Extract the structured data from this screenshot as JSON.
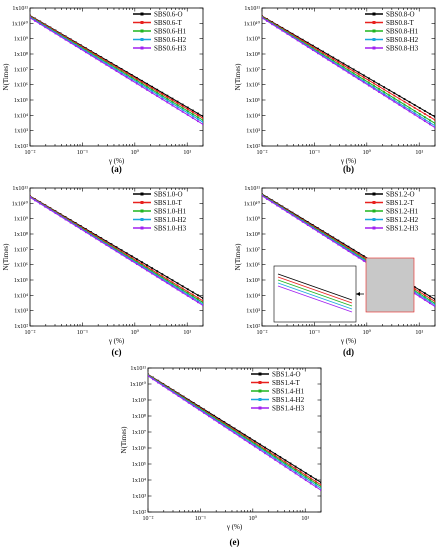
{
  "figure": {
    "colors": {
      "O": "#000000",
      "T": "#e8201e",
      "H1": "#1fb51f",
      "H2": "#1aa6de",
      "H3": "#a020f0"
    }
  },
  "chart_data": [
    {
      "panel": "a",
      "type": "line",
      "xscale": "log",
      "yscale": "log",
      "xlabel": "γ (%)",
      "ylabel": "N(Times)",
      "xlim": [
        0.01,
        20
      ],
      "ylim": [
        100.0,
        100000000000.0
      ],
      "x_ticks": [
        "10⁻²",
        "10⁻¹",
        "10⁰",
        "10¹"
      ],
      "y_ticks": [
        "1x10²",
        "1x10³",
        "1x10⁴",
        "1x10⁵",
        "1x10⁶",
        "1x10⁷",
        "1x10⁸",
        "1x10⁹",
        "1x10¹⁰",
        "1x10¹¹"
      ],
      "legend_position": "top-right",
      "series": [
        {
          "name": "SBS0.6-O",
          "key": "O",
          "x": [
            0.01,
            20
          ],
          "y": [
            32000000000.0,
            8500.0
          ]
        },
        {
          "name": "SBS0.6-T",
          "key": "T",
          "x": [
            0.01,
            20
          ],
          "y": [
            30000000000.0,
            6500.0
          ]
        },
        {
          "name": "SBS0.6-H1",
          "key": "H1",
          "x": [
            0.01,
            20
          ],
          "y": [
            27000000000.0,
            4800.0
          ]
        },
        {
          "name": "SBS0.6-H2",
          "key": "H2",
          "x": [
            0.01,
            20
          ],
          "y": [
            25000000000.0,
            3600.0
          ]
        },
        {
          "name": "SBS0.6-H3",
          "key": "H3",
          "x": [
            0.01,
            20
          ],
          "y": [
            23000000000.0,
            2600.0
          ]
        }
      ]
    },
    {
      "panel": "b",
      "type": "line",
      "xscale": "log",
      "yscale": "log",
      "xlabel": "γ (%)",
      "ylabel": "N(Times)",
      "xlim": [
        0.01,
        20
      ],
      "ylim": [
        100.0,
        100000000000.0
      ],
      "x_ticks": [
        "10⁻²",
        "10⁻¹",
        "10⁰",
        "10¹"
      ],
      "y_ticks": [
        "1x10²",
        "1x10³",
        "1x10⁴",
        "1x10⁵",
        "1x10⁶",
        "1x10⁷",
        "1x10⁸",
        "1x10⁹",
        "1x10¹⁰",
        "1x10¹¹"
      ],
      "legend_position": "top-right",
      "series": [
        {
          "name": "SBS0.8-O",
          "key": "O",
          "x": [
            0.01,
            20
          ],
          "y": [
            30000000000.0,
            8000.0
          ]
        },
        {
          "name": "SBS0.8-T",
          "key": "T",
          "x": [
            0.01,
            20
          ],
          "y": [
            28000000000.0,
            5000.0
          ]
        },
        {
          "name": "SBS0.8-H1",
          "key": "H1",
          "x": [
            0.01,
            20
          ],
          "y": [
            26000000000.0,
            3000.0
          ]
        },
        {
          "name": "SBS0.8-H2",
          "key": "H2",
          "x": [
            0.01,
            20
          ],
          "y": [
            24000000000.0,
            2100.0
          ]
        },
        {
          "name": "SBS0.8-H3",
          "key": "H3",
          "x": [
            0.01,
            20
          ],
          "y": [
            23000000000.0,
            1600.0
          ]
        }
      ]
    },
    {
      "panel": "c",
      "type": "line",
      "xscale": "log",
      "yscale": "log",
      "xlabel": "γ (%)",
      "ylabel": "N(Times)",
      "xlim": [
        0.01,
        20
      ],
      "ylim": [
        100.0,
        100000000000.0
      ],
      "x_ticks": [
        "10⁻²",
        "10⁻¹",
        "10⁰",
        "10¹"
      ],
      "y_ticks": [
        "1x10²",
        "1x10³",
        "1x10⁴",
        "1x10⁵",
        "1x10⁶",
        "1x10⁷",
        "1x10⁸",
        "1x10⁹",
        "1x10¹⁰",
        "1x10¹¹"
      ],
      "legend_position": "top-right",
      "series": [
        {
          "name": "SBS1.0-O",
          "key": "O",
          "x": [
            0.01,
            20
          ],
          "y": [
            30000000000.0,
            6500.0
          ]
        },
        {
          "name": "SBS1.0-T",
          "key": "T",
          "x": [
            0.01,
            20
          ],
          "y": [
            29000000000.0,
            4400.0
          ]
        },
        {
          "name": "SBS1.0-H1",
          "key": "H1",
          "x": [
            0.01,
            20
          ],
          "y": [
            27000000000.0,
            3400.0
          ]
        },
        {
          "name": "SBS1.0-H2",
          "key": "H2",
          "x": [
            0.01,
            20
          ],
          "y": [
            26000000000.0,
            2700.0
          ]
        },
        {
          "name": "SBS1.0-H3",
          "key": "H3",
          "x": [
            0.01,
            20
          ],
          "y": [
            25000000000.0,
            2200.0
          ]
        }
      ]
    },
    {
      "panel": "d",
      "type": "line",
      "xscale": "log",
      "yscale": "log",
      "xlabel": "γ (%)",
      "ylabel": "N(Times)",
      "xlim": [
        0.01,
        20
      ],
      "ylim": [
        100.0,
        100000000000.0
      ],
      "x_ticks": [
        "10⁻²",
        "10⁻¹",
        "10⁰",
        "10¹"
      ],
      "y_ticks": [
        "1x10²",
        "1x10³",
        "1x10⁴",
        "1x10⁵",
        "1x10⁶",
        "1x10⁷",
        "1x10⁸",
        "1x10⁹",
        "1x10¹⁰",
        "1x10¹¹"
      ],
      "legend_position": "top-right",
      "inset": "zoomed view of the lines near γ = 1%",
      "series": [
        {
          "name": "SBS1.2-O",
          "key": "O",
          "x": [
            0.01,
            20
          ],
          "y": [
            40000000000.0,
            5500.0
          ]
        },
        {
          "name": "SBS1.2-T",
          "key": "T",
          "x": [
            0.01,
            20
          ],
          "y": [
            37000000000.0,
            4000.0
          ]
        },
        {
          "name": "SBS1.2-H1",
          "key": "H1",
          "x": [
            0.01,
            20
          ],
          "y": [
            35000000000.0,
            3000.0
          ]
        },
        {
          "name": "SBS1.2-H2",
          "key": "H2",
          "x": [
            0.01,
            20
          ],
          "y": [
            33000000000.0,
            2400.0
          ]
        },
        {
          "name": "SBS1.2-H3",
          "key": "H3",
          "x": [
            0.01,
            20
          ],
          "y": [
            31000000000.0,
            1900.0
          ]
        }
      ]
    },
    {
      "panel": "e",
      "type": "line",
      "xscale": "log",
      "yscale": "log",
      "xlabel": "γ (%)",
      "ylabel": "N(Times)",
      "xlim": [
        0.01,
        20
      ],
      "ylim": [
        100.0,
        100000000000.0
      ],
      "x_ticks": [
        "10⁻²",
        "10⁻¹",
        "10⁰",
        "10¹"
      ],
      "y_ticks": [
        "1x10²",
        "1x10³",
        "1x10⁴",
        "1x10⁵",
        "1x10⁶",
        "1x10⁷",
        "1x10⁸",
        "1x10⁹",
        "1x10¹⁰",
        "1x10¹¹"
      ],
      "legend_position": "top-right",
      "series": [
        {
          "name": "SBS1.4-O",
          "key": "O",
          "x": [
            0.01,
            20
          ],
          "y": [
            40000000000.0,
            7000.0
          ]
        },
        {
          "name": "SBS1.4-T",
          "key": "T",
          "x": [
            0.01,
            20
          ],
          "y": [
            38000000000.0,
            5000.0
          ]
        },
        {
          "name": "SBS1.4-H1",
          "key": "H1",
          "x": [
            0.01,
            20
          ],
          "y": [
            36000000000.0,
            3900.0
          ]
        },
        {
          "name": "SBS1.4-H2",
          "key": "H2",
          "x": [
            0.01,
            20
          ],
          "y": [
            34000000000.0,
            3000.0
          ]
        },
        {
          "name": "SBS1.4-H3",
          "key": "H3",
          "x": [
            0.01,
            20
          ],
          "y": [
            32000000000.0,
            2300.0
          ]
        }
      ]
    }
  ]
}
